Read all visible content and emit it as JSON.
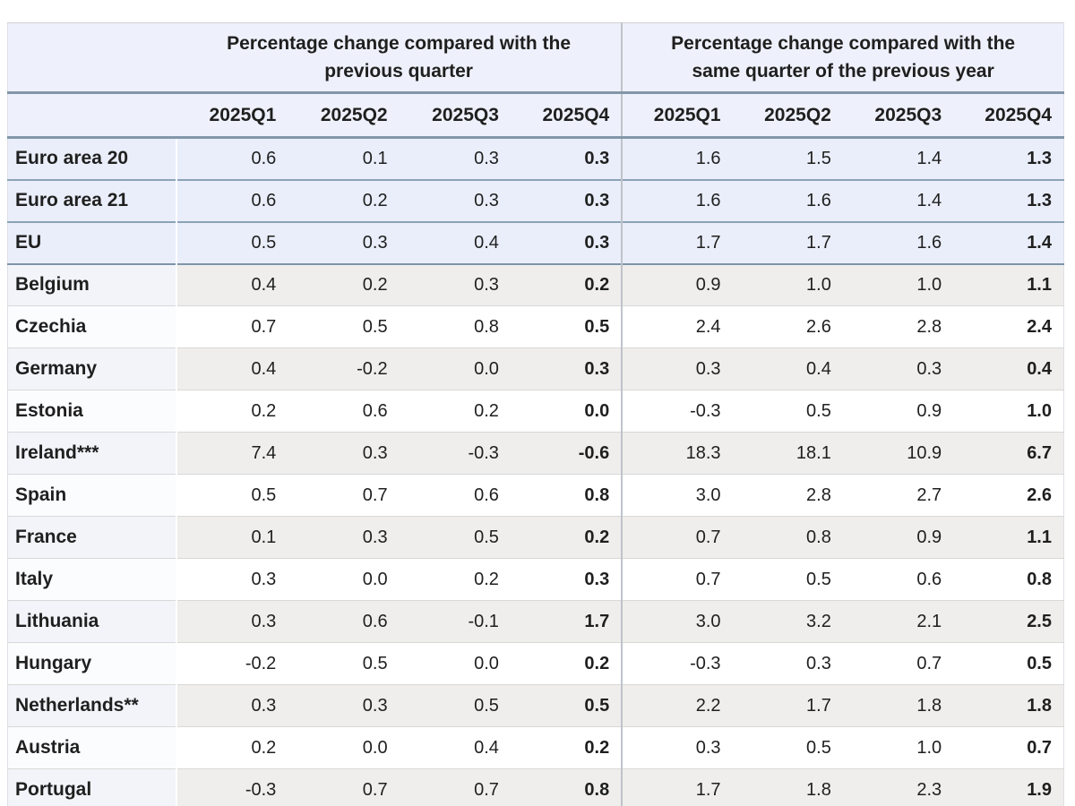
{
  "colors": {
    "header_bg": "#eef1fb",
    "aggregate_row_bg": "#e9eefa",
    "shaded_row_bg": "#efeeec",
    "shaded_name_bg": "#f2f4f9",
    "steel_border": "#8297a9",
    "row_border": "#d8d8d8",
    "group_divider": "#bfc3ca"
  },
  "chart_data": {
    "type": "table",
    "column_groups": [
      "Percentage change compared with the\nprevious quarter",
      "Percentage change compared with the\nsame quarter of the previous year"
    ],
    "columns": [
      "2025Q1",
      "2025Q2",
      "2025Q3",
      "2025Q4",
      "2025Q1",
      "2025Q2",
      "2025Q3",
      "2025Q4"
    ],
    "bold_columns": [
      "2025Q4"
    ],
    "rows": [
      {
        "name": "Euro area 20",
        "aggregate": true,
        "prev_quarter": [
          "0.6",
          "0.1",
          "0.3",
          "0.3"
        ],
        "prev_year": [
          "1.6",
          "1.5",
          "1.4",
          "1.3"
        ]
      },
      {
        "name": "Euro area 21",
        "aggregate": true,
        "prev_quarter": [
          "0.6",
          "0.2",
          "0.3",
          "0.3"
        ],
        "prev_year": [
          "1.6",
          "1.6",
          "1.4",
          "1.3"
        ]
      },
      {
        "name": "EU",
        "aggregate": true,
        "prev_quarter": [
          "0.5",
          "0.3",
          "0.4",
          "0.3"
        ],
        "prev_year": [
          "1.7",
          "1.7",
          "1.6",
          "1.4"
        ]
      },
      {
        "name": "Belgium",
        "aggregate": false,
        "prev_quarter": [
          "0.4",
          "0.2",
          "0.3",
          "0.2"
        ],
        "prev_year": [
          "0.9",
          "1.0",
          "1.0",
          "1.1"
        ]
      },
      {
        "name": "Czechia",
        "aggregate": false,
        "prev_quarter": [
          "0.7",
          "0.5",
          "0.8",
          "0.5"
        ],
        "prev_year": [
          "2.4",
          "2.6",
          "2.8",
          "2.4"
        ]
      },
      {
        "name": "Germany",
        "aggregate": false,
        "prev_quarter": [
          "0.4",
          "-0.2",
          "0.0",
          "0.3"
        ],
        "prev_year": [
          "0.3",
          "0.4",
          "0.3",
          "0.4"
        ]
      },
      {
        "name": "Estonia",
        "aggregate": false,
        "prev_quarter": [
          "0.2",
          "0.6",
          "0.2",
          "0.0"
        ],
        "prev_year": [
          "-0.3",
          "0.5",
          "0.9",
          "1.0"
        ]
      },
      {
        "name": "Ireland***",
        "aggregate": false,
        "prev_quarter": [
          "7.4",
          "0.3",
          "-0.3",
          "-0.6"
        ],
        "prev_year": [
          "18.3",
          "18.1",
          "10.9",
          "6.7"
        ]
      },
      {
        "name": "Spain",
        "aggregate": false,
        "prev_quarter": [
          "0.5",
          "0.7",
          "0.6",
          "0.8"
        ],
        "prev_year": [
          "3.0",
          "2.8",
          "2.7",
          "2.6"
        ]
      },
      {
        "name": "France",
        "aggregate": false,
        "prev_quarter": [
          "0.1",
          "0.3",
          "0.5",
          "0.2"
        ],
        "prev_year": [
          "0.7",
          "0.8",
          "0.9",
          "1.1"
        ]
      },
      {
        "name": "Italy",
        "aggregate": false,
        "prev_quarter": [
          "0.3",
          "0.0",
          "0.2",
          "0.3"
        ],
        "prev_year": [
          "0.7",
          "0.5",
          "0.6",
          "0.8"
        ]
      },
      {
        "name": "Lithuania",
        "aggregate": false,
        "prev_quarter": [
          "0.3",
          "0.6",
          "-0.1",
          "1.7"
        ],
        "prev_year": [
          "3.0",
          "3.2",
          "2.1",
          "2.5"
        ]
      },
      {
        "name": "Hungary",
        "aggregate": false,
        "prev_quarter": [
          "-0.2",
          "0.5",
          "0.0",
          "0.2"
        ],
        "prev_year": [
          "-0.3",
          "0.3",
          "0.7",
          "0.5"
        ]
      },
      {
        "name": "Netherlands**",
        "aggregate": false,
        "prev_quarter": [
          "0.3",
          "0.3",
          "0.5",
          "0.5"
        ],
        "prev_year": [
          "2.2",
          "1.7",
          "1.8",
          "1.8"
        ]
      },
      {
        "name": "Austria",
        "aggregate": false,
        "prev_quarter": [
          "0.2",
          "0.0",
          "0.4",
          "0.2"
        ],
        "prev_year": [
          "0.3",
          "0.5",
          "1.0",
          "0.7"
        ]
      },
      {
        "name": "Portugal",
        "aggregate": false,
        "prev_quarter": [
          "-0.3",
          "0.7",
          "0.7",
          "0.8"
        ],
        "prev_year": [
          "1.7",
          "1.8",
          "2.3",
          "1.9"
        ]
      }
    ]
  }
}
